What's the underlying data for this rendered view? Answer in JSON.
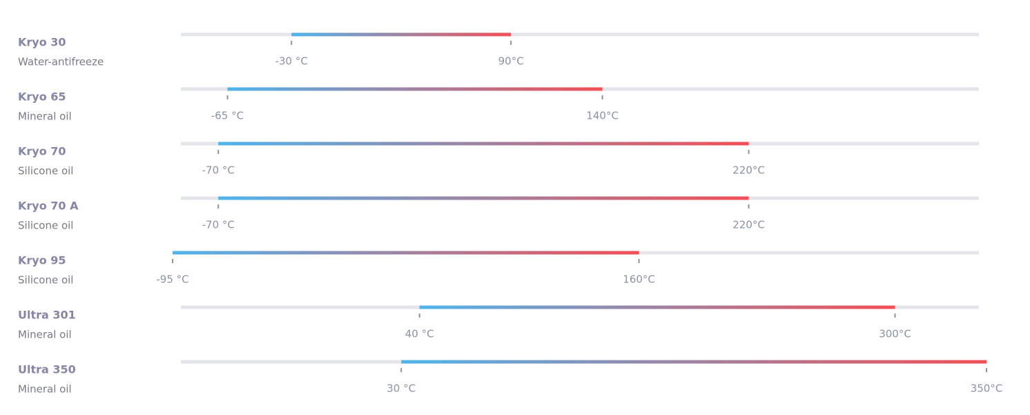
{
  "chart_data": {
    "type": "range",
    "categories": [
      "Kryo 30",
      "Kryo 65",
      "Kryo 70",
      "Kryo 70 A",
      "Kryo 95",
      "Ultra 301",
      "Ultra 350"
    ],
    "subtitles": [
      "Water-antifreeze",
      "Mineral oil",
      "Silicone oil",
      "Silicone oil",
      "Silicone oil",
      "Mineral oil",
      "Mineral oil"
    ],
    "low_values": [
      -30,
      -65,
      -70,
      -70,
      -95,
      40,
      30
    ],
    "low_labels": [
      "-30 °C",
      "-65 °C",
      "-70 °C",
      "-70 °C",
      "-95 °C",
      "40 °C",
      "30 °C"
    ],
    "high_values": [
      90,
      140,
      220,
      220,
      160,
      300,
      350
    ],
    "high_labels": [
      "90°C",
      "140°C",
      "220°C",
      "220°C",
      "160°C",
      "300°C",
      "350°C"
    ],
    "color_low": "#4fb4ec",
    "color_high": "#f24f55",
    "track_color": "#e3e5ea"
  }
}
